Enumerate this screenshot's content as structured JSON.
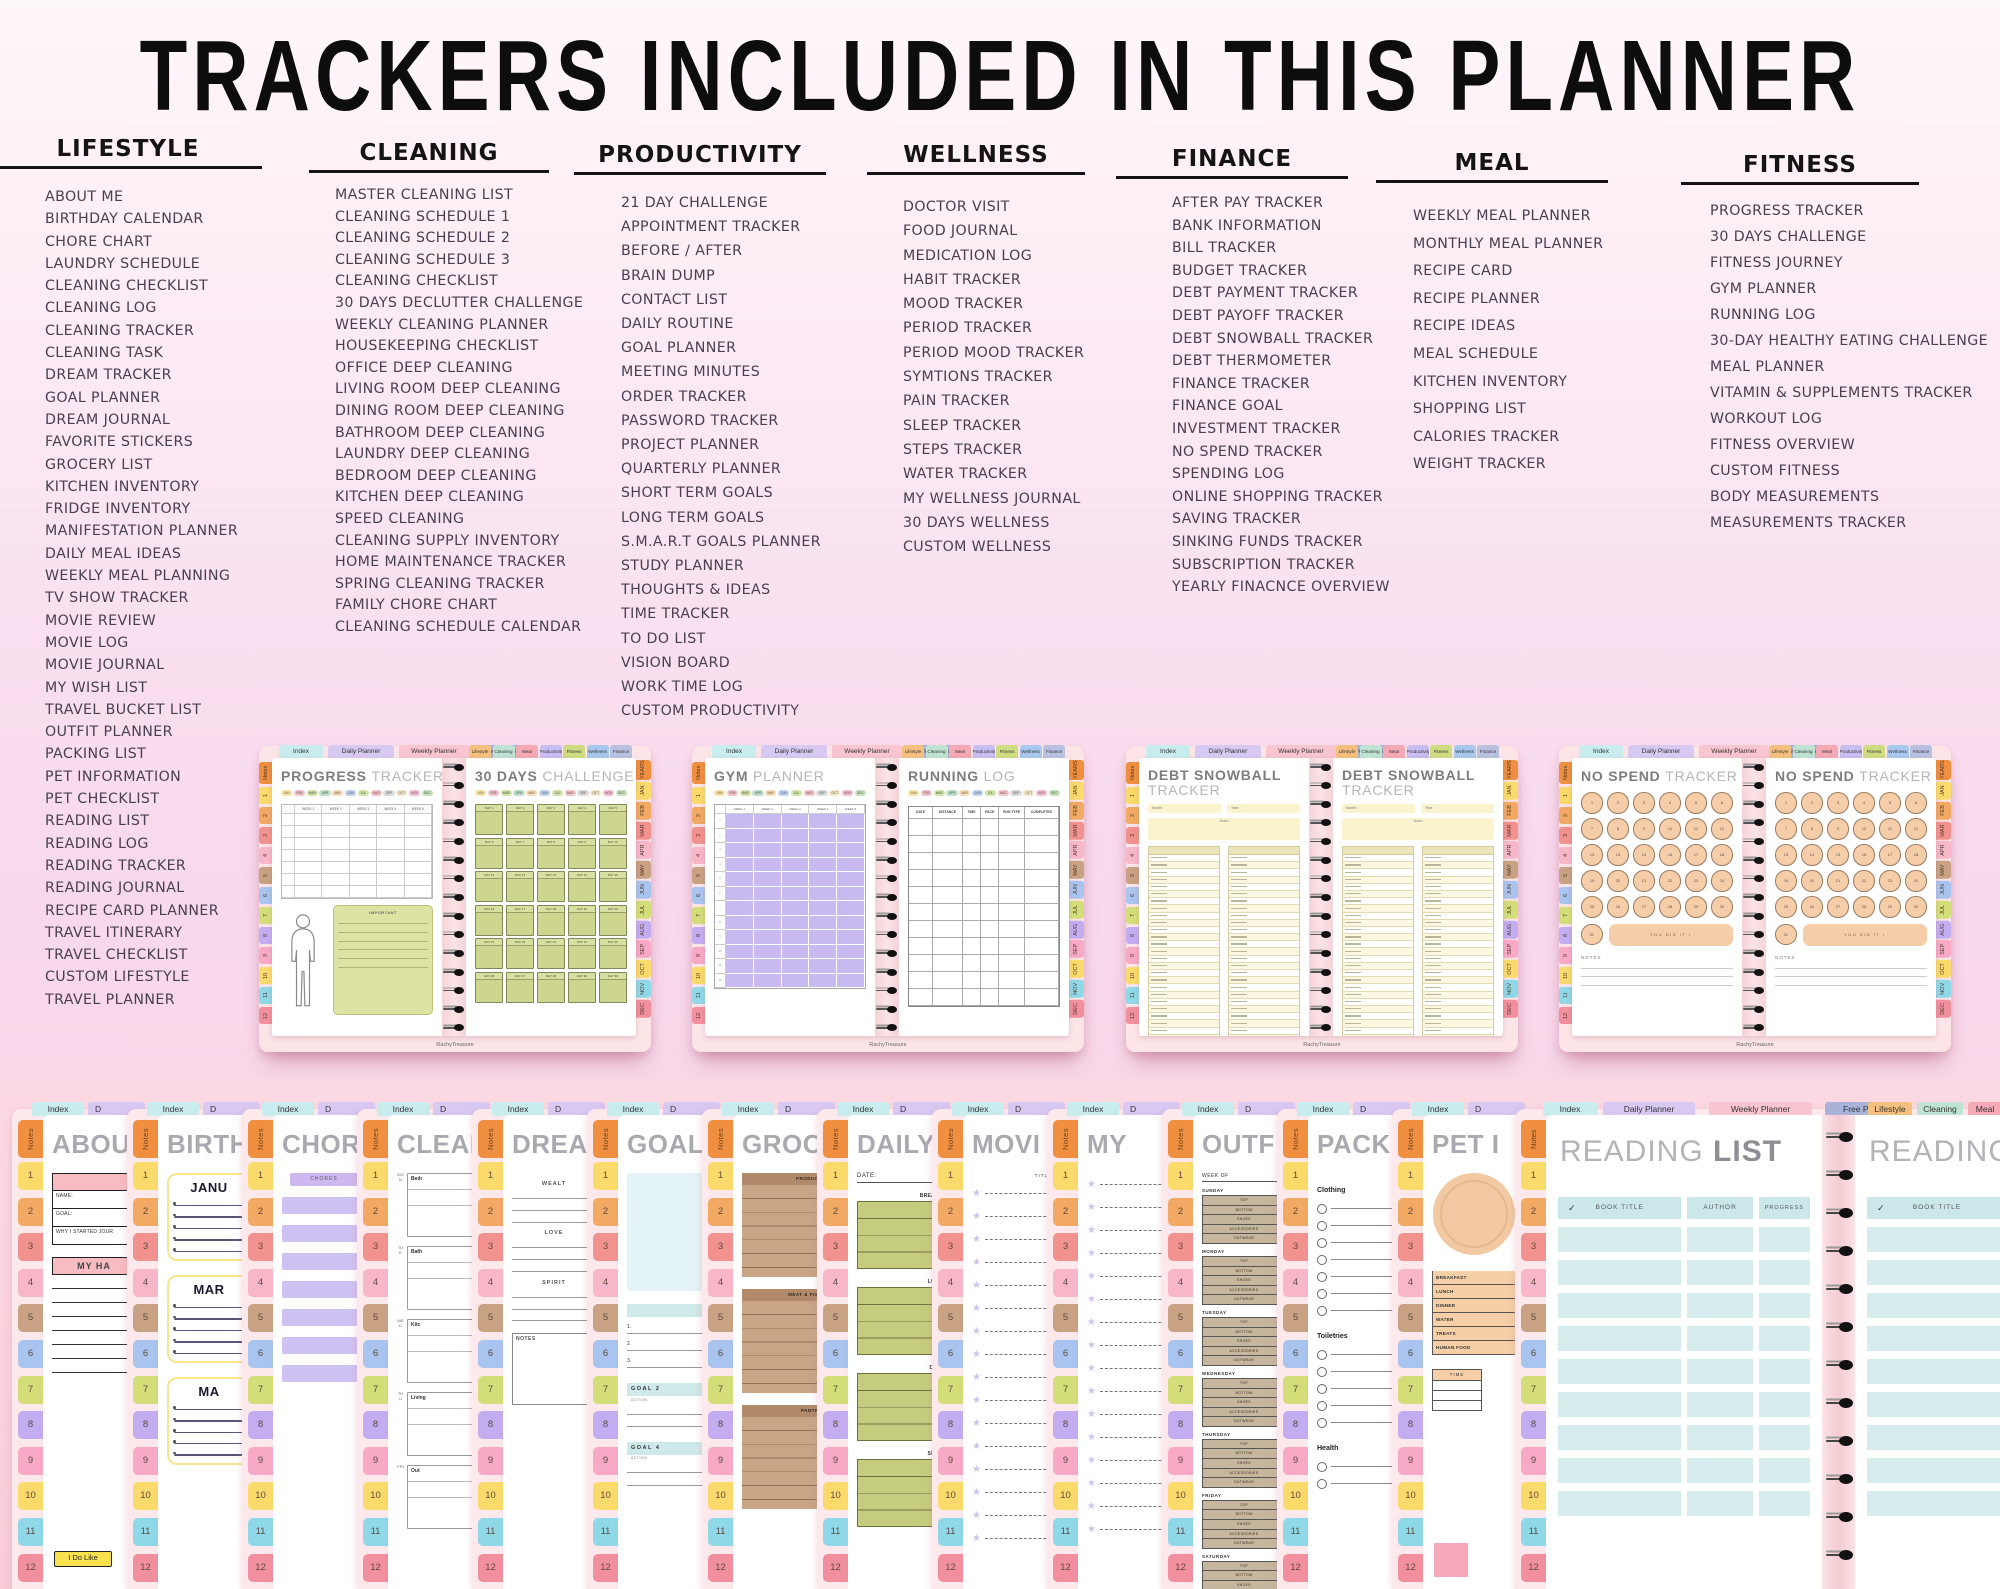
{
  "title": "TRACKERS INCLUDED IN THIS PLANNER",
  "brand": "RachyTreasure",
  "columns": [
    {
      "header": "LIFESTYLE",
      "items": [
        "ABOUT ME",
        "BIRTHDAY CALENDAR",
        "CHORE CHART",
        "LAUNDRY SCHEDULE",
        "CLEANING CHECKLIST",
        "CLEANING LOG",
        "CLEANING TRACKER",
        "CLEANING TASK",
        "DREAM TRACKER",
        "GOAL PLANNER",
        "DREAM JOURNAL",
        "FAVORITE STICKERS",
        "GROCERY LIST",
        "KITCHEN INVENTORY",
        "FRIDGE INVENTORY",
        "MANIFESTATION PLANNER",
        "DAILY MEAL IDEAS",
        "WEEKLY MEAL PLANNING",
        "TV SHOW TRACKER",
        "MOVIE REVIEW",
        "MOVIE LOG",
        "MOVIE JOURNAL",
        "MY WISH LIST",
        "TRAVEL BUCKET LIST",
        "OUTFIT PLANNER",
        "PACKING LIST",
        "PET INFORMATION",
        "PET CHECKLIST",
        "READING LIST",
        "READING LOG",
        "READING TRACKER",
        "READING JOURNAL",
        "RECIPE CARD PLANNER",
        "TRAVEL ITINERARY",
        "TRAVEL CHECKLIST",
        "CUSTOM LIFESTYLE",
        "TRAVEL PLANNER"
      ]
    },
    {
      "header": "CLEANING",
      "items": [
        "MASTER CLEANING LIST",
        "CLEANING SCHEDULE 1",
        "CLEANING SCHEDULE 2",
        "CLEANING SCHEDULE 3",
        "CLEAN­ING CHECKLIST",
        "30 DAYS DECLUTTER CHALLENGE",
        "WEEKLY CLEANING PLANNER",
        "HOUSEKEEPING CHECKLIST",
        "OFFICE DEEP CLEANING",
        "LIVING ROOM DEEP CLEANING",
        "DINING ROOM DEEP CLEANING",
        "BATHROOM DEEP CLEANING",
        "LAUNDRY DEEP CLEANING",
        "BEDROOM DEEP CLEANING",
        "KITCHEN DEEP CLEANING",
        "SPEED CLEANING",
        "CLEANING SUPPLY INVENTORY",
        "HOME MAINTENANCE TRACKER",
        "SPRING CLEANING TRACKER",
        "FAMILY CHORE CHART",
        "CLEANING SCHEDULE CALENDAR"
      ]
    },
    {
      "header": "PRODUCTIVITY",
      "items": [
        "21 DAY CHALLENGE",
        "APPOINTMENT TRACKER",
        "BEFORE / AFTER",
        "BRAIN DUMP",
        "CONTACT LIST",
        "DAILY ROUTINE",
        "GOAL PLANNER",
        "MEETING MINUTES",
        "ORDER TRACKER",
        "PASSWORD TRACKER",
        "PROJECT PLANNER",
        "QUARTERLY PLANNER",
        "SHORT TERM GOALS",
        "LONG TERM GOALS",
        "S.M.A.R.T GOALS PLANNER",
        "STUDY PLANNER",
        "THOUGHTS & IDEAS",
        "TIME TRACKER",
        "TO DO LIST",
        "VISION BOARD",
        "WORK TIME LOG",
        "CUSTOM PRODUCTIVITY"
      ]
    },
    {
      "header": "WELLNESS",
      "items": [
        "DOCTOR VISIT",
        "FOOD JOURNAL",
        "MEDICATION LOG",
        "HABIT TRACKER",
        "MOOD TRACKER",
        "PERIOD TRACKER",
        "PERIOD MOOD TRACKER",
        "SYMTIONS TRACKER",
        "PAIN TRACKER",
        "SLEEP TRACKER",
        "STEPS TRACKER",
        "WATER TRACKER",
        "MY WELLNESS JOURNAL",
        "30 DAYS WELLNESS",
        "CUSTOM WELLNESS"
      ]
    },
    {
      "header": "FINANCE",
      "items": [
        "AFTER PAY TRACKER",
        "BANK INFORMATION",
        "BILL TRACKER",
        "BUDGET TRACKER",
        "DEBT PAYMENT TRACKER",
        "DEBT PAYOFF TRACKER",
        "DEBT SNOWBALL TRACKER",
        "DEBT THERMOMETER",
        "FINANCE TRACKER",
        "FINANCE GOAL",
        "INVESTMENT TRACKER",
        "NO SPEND TRACKER",
        "SPENDING LOG",
        "ONLINE SHOPPING TRACKER",
        "SAVING TRACKER",
        "SINKING FUNDS TRACKER",
        "SUBSCRIPTION TRACKER",
        "YEARLY FINACNCE OVERVIEW"
      ]
    },
    {
      "header": "MEAL",
      "items": [
        "WEEKLY MEAL PLANNER",
        "MONTHLY MEAL PLANNER",
        "RECIPE CARD",
        "RECIPE PLANNER",
        "RECIPE IDEAS",
        "MEAL SCHEDULE",
        "KITCHEN INVENTORY",
        "SHOPPING LIST",
        "CALORIES TRACKER",
        "WEIGHT TRACKER"
      ]
    },
    {
      "header": "FITNESS",
      "items": [
        "PROGRESS TRACKER",
        "30 DAYS CHALLENGE",
        "FITNESS JOURNEY",
        "GYM PLANNER",
        "RUNNING LOG",
        "30-DAY HEALTHY EATING CHALLENGE",
        "MEAL PLANNER",
        "VITAMIN & SUPPLEMENTS TRACKER",
        "WORKOUT LOG",
        "FITNESS OVERVIEW",
        "CUSTOM FITNESS",
        "BODY MEASUREMENTS",
        "MEASUREMENTS TRACKER"
      ]
    }
  ],
  "planner_tabs": {
    "top_left": [
      "Index",
      "Daily Planner",
      "Weekly Planner",
      "Free Pages"
    ],
    "top_right": [
      "Lifestyle",
      "Cleaning",
      "Meal",
      "Productivity",
      "Fitness",
      "Wellness",
      "Finance"
    ],
    "side_left": [
      "Notes",
      "1",
      "2",
      "3",
      "4",
      "5",
      "6",
      "7",
      "8",
      "9",
      "10",
      "11",
      "12"
    ],
    "side_right": [
      "YEARS",
      "JAN",
      "FEB",
      "MAR",
      "APR",
      "MAY",
      "JUN",
      "JUL",
      "AUG",
      "SEP",
      "OCT",
      "NOV",
      "DEC"
    ]
  },
  "months": [
    "JAN",
    "FEB",
    "MAR",
    "APR",
    "MAY",
    "JUN",
    "JUL",
    "AUG",
    "SEP",
    "OCT",
    "NOV",
    "DEC"
  ],
  "spreads": [
    {
      "left_page": {
        "type": "progress",
        "title": [
          "PROGRESS",
          "TRACKER"
        ],
        "table_weeks": [
          "WEEK 1",
          "WEEK 2",
          "WEEK 3",
          "WEEK 4",
          "WEEK 5"
        ],
        "note_label": "IMPORTANT"
      },
      "right_page": {
        "type": "days30",
        "title": [
          "30 DAYS",
          "CHALLENGE"
        ],
        "day_prefix": "DAY"
      }
    },
    {
      "left_page": {
        "type": "gym",
        "title": [
          "GYM",
          "PLANNER"
        ],
        "table_weeks": [
          "WEEK 1",
          "WEEK 2",
          "WEEK 3",
          "WEEK 4",
          "WEEK 5"
        ]
      },
      "right_page": {
        "type": "running",
        "title": [
          "RUNNING",
          "LOG"
        ],
        "columns": [
          "DATE",
          "DISTANCE",
          "TIME",
          "PACE",
          "RUN TYPE",
          "COMPLETED"
        ]
      }
    },
    {
      "left_page": {
        "type": "debt",
        "title": [
          "DEBT SNOWBALL",
          "TRACKER"
        ],
        "fields": [
          "Month :",
          "Year :"
        ],
        "notes_label": "Notes"
      },
      "right_page": {
        "type": "debt",
        "title": [
          "DEBT SNOWBALL",
          "TRACKER"
        ],
        "fields": [
          "Month :",
          "Year :"
        ],
        "notes_label": "Notes"
      }
    },
    {
      "left_page": {
        "type": "nospend",
        "title": [
          "NO SPEND",
          "TRACKER"
        ],
        "banner": "YOU DID IT !",
        "notes_label": "NOTES"
      },
      "right_page": {
        "type": "nospend",
        "title": [
          "NO SPEND",
          "TRACKER"
        ],
        "banner": "YOU DID IT !",
        "notes_label": "NOTES"
      }
    }
  ],
  "bottom_tabs": {
    "index": "Index",
    "daily": "D"
  },
  "bottom_cards": [
    {
      "title": "ABOUT",
      "type": "about",
      "fields": [
        "NAME:",
        "GOAL:",
        "WHY I STARTED JOUR"
      ],
      "section": "MY HA",
      "sticker": "I Do Like"
    },
    {
      "title": "BIRTHD",
      "type": "birthday",
      "labels": [
        "JANU",
        "MAR",
        "MA"
      ]
    },
    {
      "title": "CHORE",
      "type": "chore",
      "header": "CHORES"
    },
    {
      "title": "CLEAN",
      "type": "clean",
      "days": [
        "MON",
        "TUE",
        "WED",
        "THU",
        "FRI"
      ],
      "sections": [
        "Bedr",
        "Bath",
        "Kitc",
        "Living",
        "Out"
      ]
    },
    {
      "title": "DREA",
      "type": "dream",
      "sections": [
        "WEALT",
        "LOVE",
        "SPIRIT"
      ],
      "notes_label": "NOTES"
    },
    {
      "title": "GOAL",
      "type": "goal",
      "bars": [
        {
          "label": "GOAL 2",
          "sub": "ACTION"
        },
        {
          "label": "GOAL 4",
          "sub": "ACTION"
        }
      ],
      "numbers": [
        "1.",
        "2.",
        "3."
      ]
    },
    {
      "title": "GROC",
      "type": "grocery",
      "sections": [
        "PRODUCE",
        "MEAT & FISH",
        "PANTRY"
      ]
    },
    {
      "title": "DAILY N",
      "type": "daily",
      "date_label": "DATE:",
      "sections": [
        "BREAK",
        "LUN",
        "DIN",
        "SNA"
      ]
    },
    {
      "title": "MOVI",
      "type": "stars",
      "header": "TITLE"
    },
    {
      "title": "MY",
      "type": "stars"
    },
    {
      "title": "OUTF",
      "type": "outfit",
      "week_label": "WEEK OF",
      "days": [
        "SUNDAY",
        "MONDAY",
        "TUESDAY",
        "WEDNESDAY",
        "THURSDAY",
        "FRIDAY",
        "SATURDAY"
      ],
      "rows": [
        "TOP",
        "BOTTOM",
        "SHOES",
        "ACCESSORIES",
        "OUTWEAR"
      ]
    },
    {
      "title": "PACK",
      "type": "pack",
      "sections": [
        {
          "label": "Clothing",
          "count": 7
        },
        {
          "label": "Toiletries",
          "count": 5
        },
        {
          "label": "Health",
          "count": 2
        }
      ]
    },
    {
      "title": "PET I",
      "type": "pet",
      "rows": [
        "BREAKFAST",
        "LUNCH",
        "DINNER",
        "WATER",
        "TREATS",
        "HUMAN FOOD"
      ],
      "time_label": "TIME"
    }
  ],
  "reading": {
    "tabs_left": [
      "Index",
      "Daily Planner",
      "Weekly Planner",
      "Free Pages"
    ],
    "tabs_right": [
      "Lifestyle",
      "Cleaning",
      "Meal",
      "Produ"
    ],
    "left_title": [
      "READING",
      "LIST"
    ],
    "right_title": [
      "READING",
      "L"
    ],
    "check": "✓",
    "left_headers": [
      "BOOK TITLE",
      "AUTHOR",
      "PROGRESS"
    ],
    "right_header": "BOOK TITLE"
  },
  "colors": {
    "tab_index": "#c9ecef",
    "tab_daily": "#d8c9f3",
    "tab_weekly": "#f8c5d1",
    "tab_free": "#a9b3da",
    "cat_tabs": [
      "#f4c07f",
      "#bfe4d3",
      "#f5a9b5",
      "#c9bdf1",
      "#cfdc82",
      "#a9c8ee",
      "#b9c1e1"
    ],
    "side_tabs": [
      "#ef8f3f",
      "#fada6a",
      "#f2a964",
      "#f2928e",
      "#f8b7c9",
      "#c9a183",
      "#a9c4ee",
      "#d3de79",
      "#c2adf0",
      "#f8a9c5",
      "#fada6a",
      "#8fd8e8",
      "#f28f9e"
    ],
    "month_pills": [
      "#f9e6a6",
      "#f6c3cb",
      "#d3e4a7",
      "#bfe0cc",
      "#f9ddb4",
      "#bfd3f0",
      "#d3e4a7",
      "#f6c3cb",
      "#dcdcdc",
      "#f3e7c6",
      "#f6bcd2",
      "#c6e2b8"
    ]
  }
}
